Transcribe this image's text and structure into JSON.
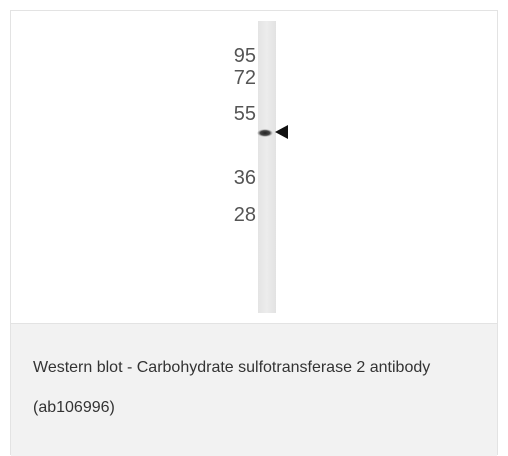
{
  "figure": {
    "markers": [
      "95",
      "72",
      "55",
      "36",
      "28"
    ]
  },
  "caption": "Western blot - Carbohydrate sulfotransferase 2 antibody (ab106996)"
}
